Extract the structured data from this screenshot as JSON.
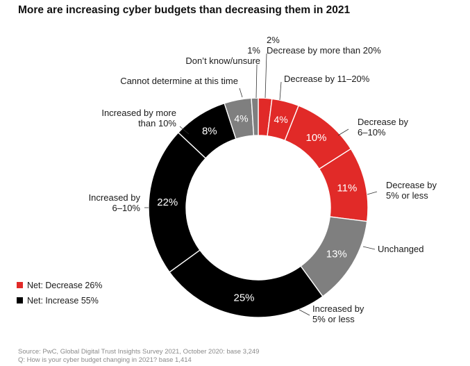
{
  "title": "More are increasing cyber budgets than decreasing them in 2021",
  "colors": {
    "decrease": "#e12a28",
    "unchanged": "#7f7f7f",
    "increase": "#000000",
    "undetermined": "#7f7f7f",
    "dont_know": "#7f7f7f"
  },
  "legend": [
    {
      "label": "Net: Decrease 26%",
      "color": "#e12a28"
    },
    {
      "label": "Net: Increase 55%",
      "color": "#000000"
    }
  ],
  "source": [
    "Source: PwC, Global Digital Trust Insights Survey 2021, October 2020: base 3,249",
    "Q: How is your cyber budget changing in 2021? base 1,414"
  ],
  "chart_data": {
    "type": "pie",
    "donut": true,
    "title": "More are increasing cyber budgets than decreasing them in 2021",
    "legend_position": "bottom-left",
    "slices": [
      {
        "label": "Decrease by more than 20%",
        "value": 2,
        "value_label": "2%",
        "color": "#e12a28"
      },
      {
        "label": "Decrease by 11–20%",
        "value": 4,
        "value_label": "4%",
        "color": "#e12a28"
      },
      {
        "label": "Decrease by 6–10%",
        "value": 10,
        "value_label": "10%",
        "color": "#e12a28"
      },
      {
        "label": "Decrease by 5% or less",
        "value": 11,
        "value_label": "11%",
        "color": "#e12a28"
      },
      {
        "label": "Unchanged",
        "value": 13,
        "value_label": "13%",
        "color": "#7f7f7f"
      },
      {
        "label": "Increased by 5% or less",
        "value": 25,
        "value_label": "25%",
        "color": "#000000"
      },
      {
        "label": "Increased by 6–10%",
        "value": 22,
        "value_label": "22%",
        "color": "#000000"
      },
      {
        "label": "Increased by more than 10%",
        "value": 8,
        "value_label": "8%",
        "color": "#000000"
      },
      {
        "label": "Cannot determine at this time",
        "value": 4,
        "value_label": "4%",
        "color": "#7f7f7f"
      },
      {
        "label": "Don’t know/unsure",
        "value": 1,
        "value_label": "1%",
        "color": "#7f7f7f"
      }
    ]
  }
}
